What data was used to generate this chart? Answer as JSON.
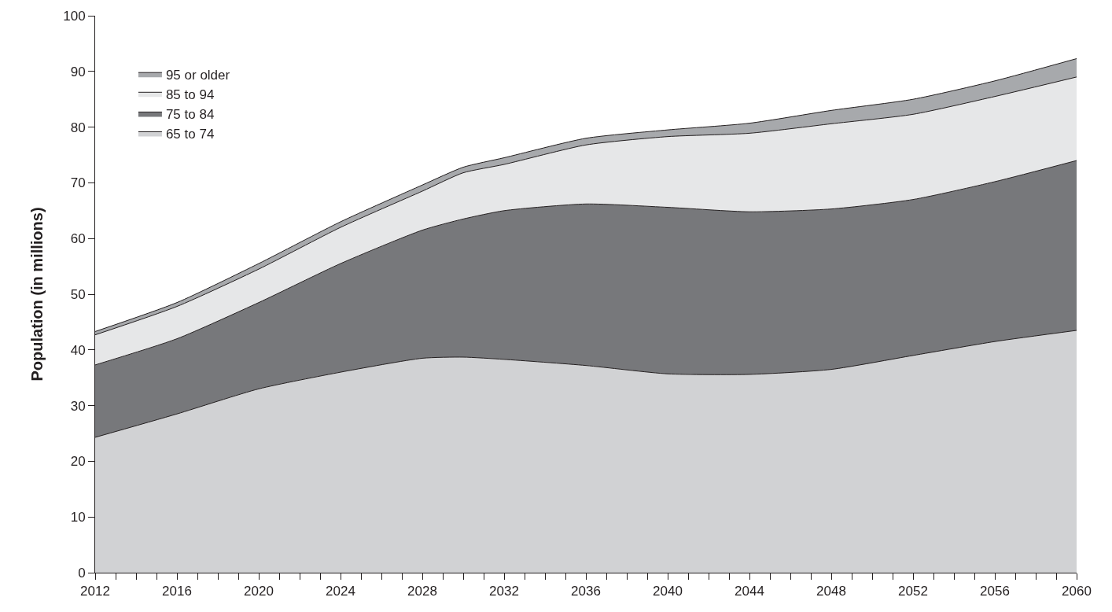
{
  "chart_data": {
    "type": "area",
    "stacked": true,
    "ylabel": "Population (in millions)",
    "x": [
      2012,
      2016,
      2020,
      2024,
      2028,
      2030,
      2032,
      2036,
      2040,
      2044,
      2048,
      2052,
      2056,
      2060
    ],
    "series": [
      {
        "name": "65 to 74",
        "color": "#d1d2d4",
        "values": [
          24.3,
          28.5,
          33,
          36,
          38.5,
          38.7,
          38.3,
          37.2,
          35.7,
          35.6,
          36.5,
          39,
          41.5,
          43.5
        ]
      },
      {
        "name": "75 to 84",
        "color": "#77787b",
        "values": [
          13.0,
          13.5,
          15.5,
          19.5,
          23.0,
          24.8,
          26.7,
          29.0,
          29.9,
          29.2,
          28.8,
          28.0,
          28.7,
          30.5
        ]
      },
      {
        "name": "85 to 94",
        "color": "#e6e7e8",
        "values": [
          5.4,
          5.8,
          6.0,
          6.5,
          7.0,
          8.3,
          8.3,
          10.6,
          12.7,
          14.1,
          15.3,
          15.3,
          15.3,
          15.0
        ]
      },
      {
        "name": "95 or older",
        "color": "#a7a9ac",
        "values": [
          0.6,
          0.7,
          1.0,
          1.0,
          1.1,
          1.0,
          1.2,
          1.2,
          1.2,
          1.8,
          2.4,
          2.7,
          2.8,
          3.3
        ]
      }
    ],
    "xlim": [
      2012,
      2060
    ],
    "xticks": [
      2012,
      {
        "value": 2013,
        "label": null
      },
      {
        "value": 2014,
        "label": null
      },
      {
        "value": 2015,
        "label": null
      },
      2016,
      {
        "value": 2017,
        "label": null
      },
      {
        "value": 2018,
        "label": null
      },
      {
        "value": 2019,
        "label": null
      },
      2020,
      {
        "value": 2021,
        "label": null
      },
      {
        "value": 2022,
        "label": null
      },
      {
        "value": 2023,
        "label": null
      },
      2024,
      {
        "value": 2025,
        "label": null
      },
      {
        "value": 2026,
        "label": null
      },
      {
        "value": 2027,
        "label": null
      },
      2028,
      {
        "value": 2029,
        "label": null
      },
      {
        "value": 2030,
        "label": null
      },
      {
        "value": 2031,
        "label": null
      },
      2032,
      {
        "value": 2033,
        "label": null
      },
      {
        "value": 2034,
        "label": null
      },
      {
        "value": 2035,
        "label": null
      },
      2036,
      {
        "value": 2037,
        "label": null
      },
      {
        "value": 2038,
        "label": null
      },
      {
        "value": 2039,
        "label": null
      },
      2040,
      {
        "value": 2041,
        "label": null
      },
      {
        "value": 2042,
        "label": null
      },
      {
        "value": 2043,
        "label": null
      },
      2044,
      {
        "value": 2045,
        "label": null
      },
      {
        "value": 2046,
        "label": null
      },
      {
        "value": 2047,
        "label": null
      },
      2048,
      {
        "value": 2049,
        "label": null
      },
      {
        "value": 2050,
        "label": null
      },
      {
        "value": 2051,
        "label": null
      },
      2052,
      {
        "value": 2053,
        "label": null
      },
      {
        "value": 2054,
        "label": null
      },
      {
        "value": 2055,
        "label": null
      },
      2056,
      {
        "value": 2057,
        "label": null
      },
      {
        "value": 2058,
        "label": null
      },
      {
        "value": 2059,
        "label": null
      },
      2060
    ],
    "ylim": [
      0,
      100
    ],
    "yticks": [
      0,
      10,
      20,
      30,
      40,
      50,
      60,
      70,
      80,
      90,
      100
    ],
    "grid": false,
    "legend": "top left",
    "marker": "none",
    "line_style": "solid"
  }
}
